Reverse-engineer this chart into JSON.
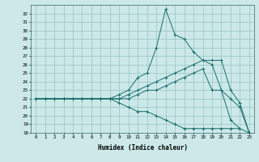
{
  "xlabel": "Humidex (Indice chaleur)",
  "background_color": "#cce8e8",
  "grid_color": "#88bbbb",
  "line_color": "#1a6e6e",
  "xlim": [
    -0.5,
    23.5
  ],
  "ylim": [
    18,
    33
  ],
  "xticks": [
    0,
    1,
    2,
    3,
    4,
    5,
    6,
    7,
    8,
    9,
    10,
    11,
    12,
    13,
    14,
    15,
    16,
    17,
    18,
    19,
    20,
    21,
    22,
    23
  ],
  "yticks": [
    18,
    19,
    20,
    21,
    22,
    23,
    24,
    25,
    26,
    27,
    28,
    29,
    30,
    31,
    32
  ],
  "series": [
    {
      "x": [
        0,
        1,
        2,
        3,
        4,
        5,
        6,
        7,
        8,
        9,
        10,
        11,
        12,
        13,
        14,
        15,
        16,
        17,
        18,
        19,
        20,
        21,
        22
      ],
      "y": [
        22.0,
        22.0,
        22.0,
        22.0,
        22.0,
        22.0,
        22.0,
        22.0,
        22.0,
        22.5,
        23.0,
        24.5,
        25.0,
        28.0,
        32.5,
        29.5,
        29.0,
        27.5,
        26.5,
        26.0,
        23.0,
        19.5,
        18.5
      ]
    },
    {
      "x": [
        0,
        1,
        2,
        3,
        4,
        5,
        6,
        7,
        8,
        9,
        10,
        11,
        12,
        13,
        14,
        15,
        16,
        17,
        18,
        19,
        20,
        21,
        22,
        23
      ],
      "y": [
        22.0,
        22.0,
        22.0,
        22.0,
        22.0,
        22.0,
        22.0,
        22.0,
        22.0,
        22.0,
        22.5,
        23.0,
        23.5,
        24.0,
        24.5,
        25.0,
        25.5,
        26.0,
        26.5,
        26.5,
        26.5,
        23.0,
        21.5,
        18.0
      ]
    },
    {
      "x": [
        0,
        1,
        2,
        3,
        4,
        5,
        6,
        7,
        8,
        9,
        10,
        11,
        12,
        13,
        14,
        15,
        16,
        17,
        18,
        19,
        20,
        21,
        22,
        23
      ],
      "y": [
        22.0,
        22.0,
        22.0,
        22.0,
        22.0,
        22.0,
        22.0,
        22.0,
        22.0,
        22.0,
        22.0,
        22.5,
        23.0,
        23.0,
        23.5,
        24.0,
        24.5,
        25.0,
        25.5,
        23.0,
        23.0,
        22.0,
        21.0,
        18.0
      ]
    },
    {
      "x": [
        0,
        1,
        2,
        3,
        4,
        5,
        6,
        7,
        8,
        9,
        10,
        11,
        12,
        13,
        14,
        15,
        16,
        17,
        18,
        19,
        20,
        21,
        22,
        23
      ],
      "y": [
        22.0,
        22.0,
        22.0,
        22.0,
        22.0,
        22.0,
        22.0,
        22.0,
        22.0,
        21.5,
        21.0,
        20.5,
        20.5,
        20.0,
        19.5,
        19.0,
        18.5,
        18.5,
        18.5,
        18.5,
        18.5,
        18.5,
        18.5,
        18.0
      ]
    }
  ]
}
